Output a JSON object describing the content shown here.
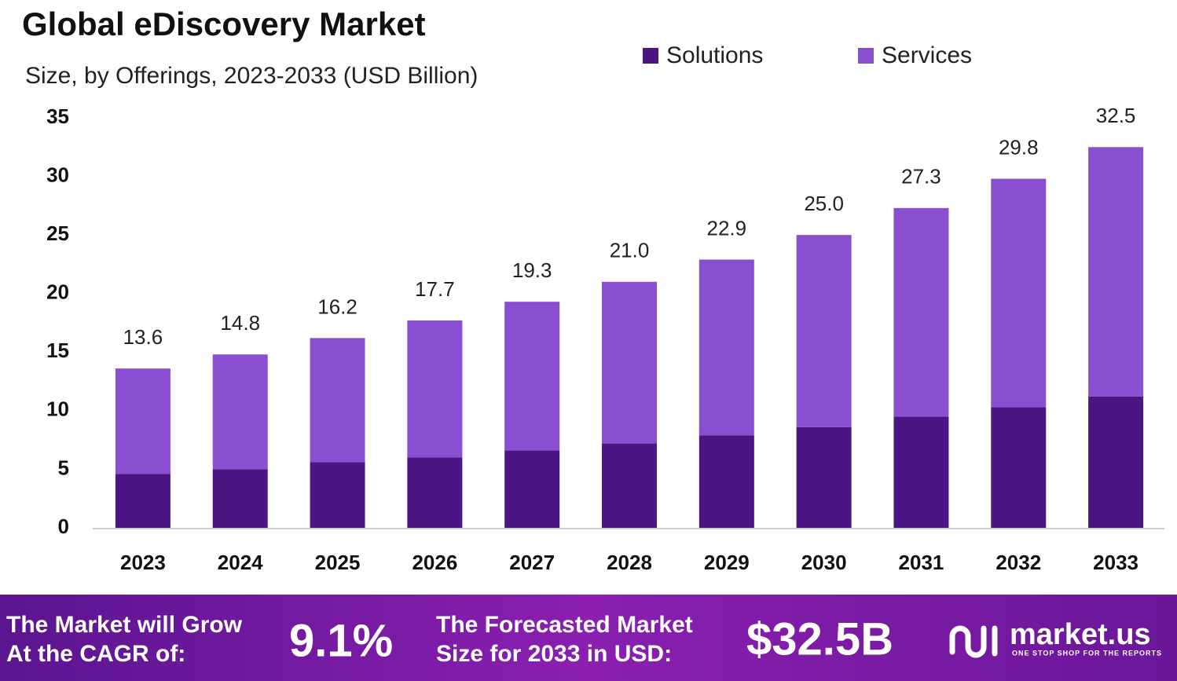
{
  "chart_data": {
    "type": "stacked-bar",
    "title": "Global eDiscovery Market",
    "subtitle": "Size, by Offerings, 2023-2033 (USD Billion)",
    "categories": [
      "2023",
      "2024",
      "2025",
      "2026",
      "2027",
      "2028",
      "2029",
      "2030",
      "2031",
      "2032",
      "2033"
    ],
    "series": [
      {
        "name": "Solutions",
        "color": "#4b1683",
        "values": [
          4.6,
          5.0,
          5.6,
          6.0,
          6.6,
          7.2,
          7.9,
          8.6,
          9.5,
          10.3,
          11.2
        ]
      },
      {
        "name": "Services",
        "color": "#8a4fd1",
        "values": [
          9.0,
          9.8,
          10.6,
          11.7,
          12.7,
          13.8,
          15.0,
          16.4,
          17.8,
          19.5,
          21.3
        ]
      }
    ],
    "totals": [
      13.6,
      14.8,
      16.2,
      17.7,
      19.3,
      21,
      22.9,
      25,
      27.3,
      29.8,
      32.5
    ],
    "total_labels": [
      "13.6",
      "14.8",
      "16.2",
      "17.7",
      "19.3",
      "21.0",
      "22.9",
      "25.0",
      "27.3",
      "29.8",
      "32.5"
    ],
    "ylim": [
      0,
      35
    ],
    "yticks": [
      0,
      5,
      10,
      15,
      20,
      25,
      30,
      35
    ],
    "grid": false,
    "legend": "top"
  },
  "footer": {
    "cagr_text": [
      "The Market will Grow",
      "At the CAGR of:"
    ],
    "cagr_value": "9.1%",
    "forecast_text": [
      "The Forecasted Market",
      "Size for 2033 in USD:"
    ],
    "forecast_value": "$32.5B",
    "brand": "market.us",
    "tagline": "ONE STOP SHOP FOR THE REPORTS"
  }
}
